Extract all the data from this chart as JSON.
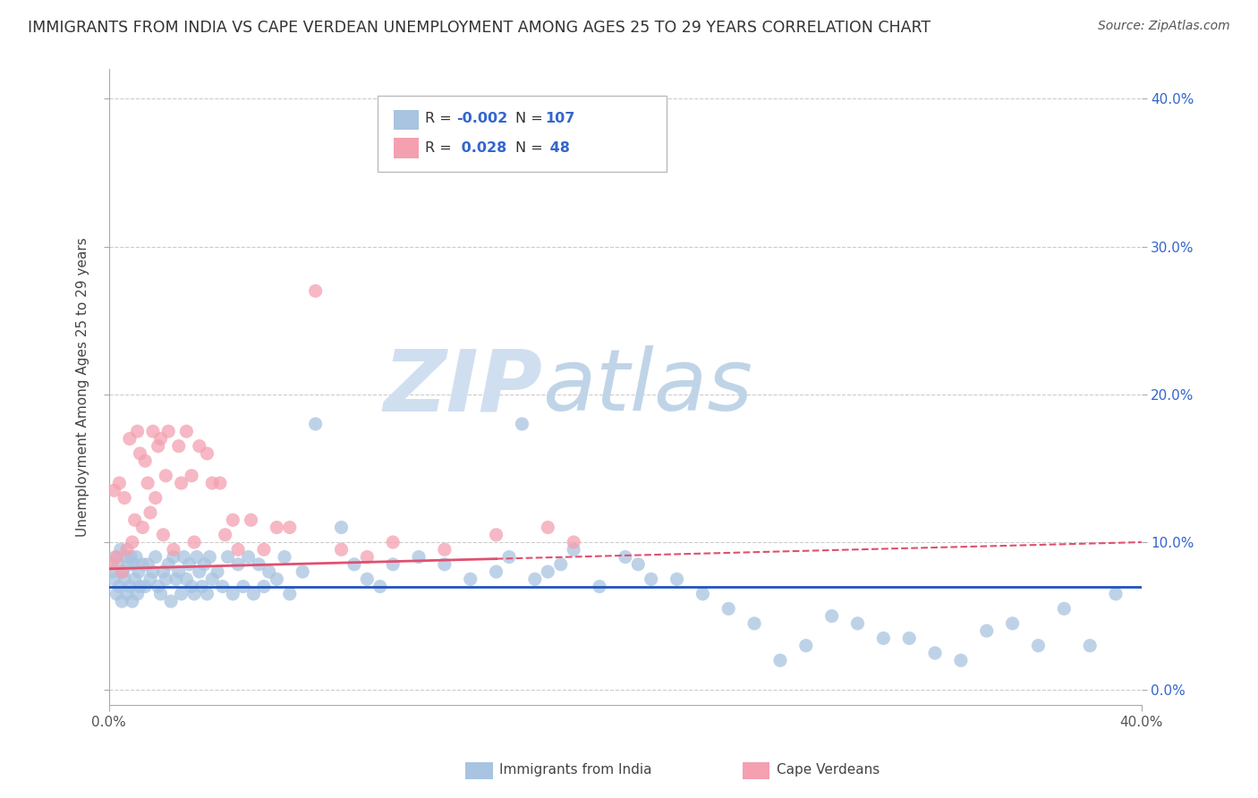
{
  "title": "IMMIGRANTS FROM INDIA VS CAPE VERDEAN UNEMPLOYMENT AMONG AGES 25 TO 29 YEARS CORRELATION CHART",
  "source": "Source: ZipAtlas.com",
  "ylabel": "Unemployment Among Ages 25 to 29 years",
  "xlim": [
    0,
    40
  ],
  "ylim": [
    -1,
    42
  ],
  "yticks": [
    0,
    10,
    20,
    30,
    40
  ],
  "series1_color": "#a8c4e0",
  "series2_color": "#f4a0b0",
  "line1_color": "#2255bb",
  "line2_color": "#e05070",
  "watermark_zip": "ZIP",
  "watermark_atlas": "atlas",
  "watermark_color_zip": "#d0dff0",
  "watermark_color_atlas": "#c0d4e8",
  "background_color": "#ffffff",
  "grid_color": "#cccccc",
  "title_color": "#333333",
  "legend_value_color": "#3366cc",
  "right_tick_color": "#3366cc",
  "blue_line_y": 7.0,
  "pink_line_y0": 8.2,
  "pink_line_y1": 10.0,
  "pink_solid_end_x": 15.0,
  "series1_x": [
    0.15,
    0.2,
    0.25,
    0.3,
    0.35,
    0.4,
    0.45,
    0.5,
    0.55,
    0.6,
    0.65,
    0.7,
    0.75,
    0.8,
    0.85,
    0.9,
    0.95,
    1.0,
    1.05,
    1.1,
    1.15,
    1.2,
    1.3,
    1.4,
    1.5,
    1.6,
    1.7,
    1.8,
    1.9,
    2.0,
    2.1,
    2.2,
    2.3,
    2.4,
    2.5,
    2.6,
    2.7,
    2.8,
    2.9,
    3.0,
    3.1,
    3.2,
    3.3,
    3.4,
    3.5,
    3.6,
    3.7,
    3.8,
    3.9,
    4.0,
    4.2,
    4.4,
    4.6,
    4.8,
    5.0,
    5.2,
    5.4,
    5.6,
    5.8,
    6.0,
    6.2,
    6.5,
    6.8,
    7.0,
    7.5,
    8.0,
    9.0,
    9.5,
    10.0,
    10.5,
    11.0,
    12.0,
    13.0,
    14.0,
    15.0,
    16.0,
    17.0,
    18.0,
    20.0,
    22.0,
    24.0,
    25.0,
    27.0,
    29.0,
    30.0,
    32.0,
    34.0,
    36.0,
    37.0,
    38.0,
    39.0,
    20.5,
    21.0,
    23.0,
    26.0,
    31.0,
    33.0,
    35.0,
    17.5,
    19.0,
    28.0,
    16.5,
    15.5
  ],
  "series1_y": [
    8.0,
    7.5,
    9.0,
    6.5,
    8.5,
    7.0,
    9.5,
    6.0,
    8.0,
    7.5,
    9.0,
    6.5,
    8.5,
    7.0,
    9.0,
    6.0,
    8.5,
    7.5,
    9.0,
    6.5,
    8.0,
    7.0,
    8.5,
    7.0,
    8.5,
    7.5,
    8.0,
    9.0,
    7.0,
    6.5,
    8.0,
    7.5,
    8.5,
    6.0,
    9.0,
    7.5,
    8.0,
    6.5,
    9.0,
    7.5,
    8.5,
    7.0,
    6.5,
    9.0,
    8.0,
    7.0,
    8.5,
    6.5,
    9.0,
    7.5,
    8.0,
    7.0,
    9.0,
    6.5,
    8.5,
    7.0,
    9.0,
    6.5,
    8.5,
    7.0,
    8.0,
    7.5,
    9.0,
    6.5,
    8.0,
    18.0,
    11.0,
    8.5,
    7.5,
    7.0,
    8.5,
    9.0,
    8.5,
    7.5,
    8.0,
    18.0,
    8.0,
    9.5,
    9.0,
    7.5,
    5.5,
    4.5,
    3.0,
    4.5,
    3.5,
    2.5,
    4.0,
    3.0,
    5.5,
    3.0,
    6.5,
    8.5,
    7.5,
    6.5,
    2.0,
    3.5,
    2.0,
    4.5,
    8.5,
    7.0,
    5.0,
    7.5,
    9.0
  ],
  "series2_x": [
    0.1,
    0.2,
    0.3,
    0.4,
    0.5,
    0.6,
    0.7,
    0.8,
    0.9,
    1.0,
    1.1,
    1.2,
    1.3,
    1.4,
    1.5,
    1.6,
    1.7,
    1.8,
    1.9,
    2.0,
    2.1,
    2.2,
    2.3,
    2.5,
    2.7,
    3.0,
    3.2,
    3.5,
    3.8,
    4.0,
    4.3,
    4.5,
    5.0,
    5.5,
    6.0,
    7.0,
    8.0,
    9.0,
    10.0,
    11.0,
    13.0,
    15.0,
    17.0,
    18.0,
    2.8,
    3.3,
    4.8,
    6.5
  ],
  "series2_y": [
    8.5,
    13.5,
    9.0,
    14.0,
    8.0,
    13.0,
    9.5,
    17.0,
    10.0,
    11.5,
    17.5,
    16.0,
    11.0,
    15.5,
    14.0,
    12.0,
    17.5,
    13.0,
    16.5,
    17.0,
    10.5,
    14.5,
    17.5,
    9.5,
    16.5,
    17.5,
    14.5,
    16.5,
    16.0,
    14.0,
    14.0,
    10.5,
    9.5,
    11.5,
    9.5,
    11.0,
    27.0,
    9.5,
    9.0,
    10.0,
    9.5,
    10.5,
    11.0,
    10.0,
    14.0,
    10.0,
    11.5,
    11.0
  ]
}
